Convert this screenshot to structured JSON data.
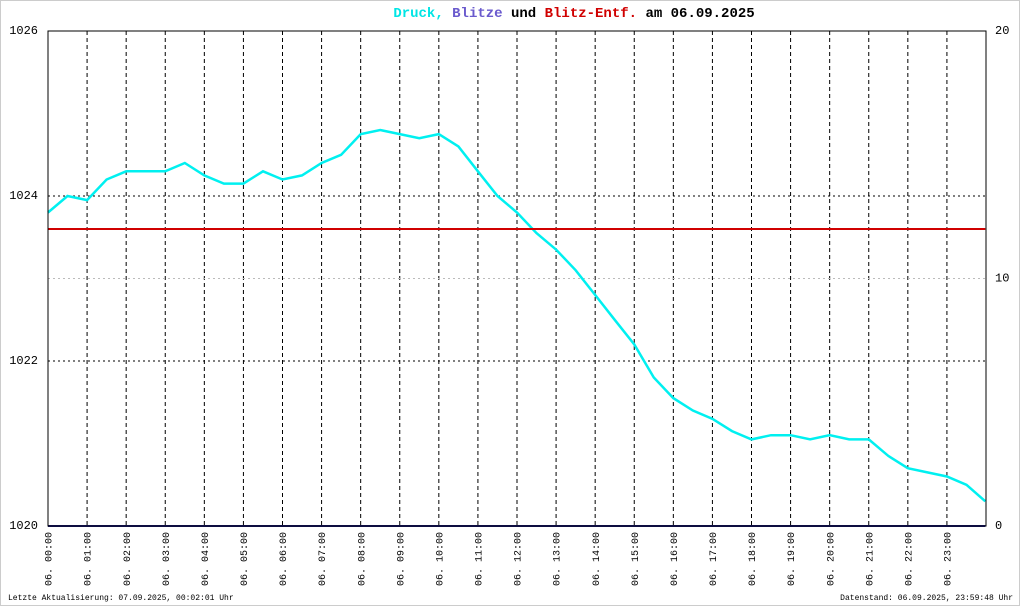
{
  "chart_data": {
    "type": "line",
    "title": [
      {
        "text": "Druck,",
        "color": "#00e5e5"
      },
      {
        "text": "Blitze",
        "color": "#6a5acd"
      },
      {
        "text": "und",
        "color": "#000000"
      },
      {
        "text": "Blitz-Entf.",
        "color": "#d00000"
      },
      {
        "text": "am 06.09.2025",
        "color": "#000000"
      }
    ],
    "footer_left": "Letzte Aktualisierung: 07.09.2025, 00:02:01 Uhr",
    "footer_right": "Datenstand: 06.09.2025, 23:59:48 Uhr",
    "xticks": [
      "06. 00:00",
      "06. 01:00",
      "06. 02:00",
      "06. 03:00",
      "06. 04:00",
      "06. 05:00",
      "06. 06:00",
      "06. 07:00",
      "06. 08:00",
      "06. 09:00",
      "06. 10:00",
      "06. 11:00",
      "06. 12:00",
      "06. 13:00",
      "06. 14:00",
      "06. 15:00",
      "06. 16:00",
      "06. 17:00",
      "06. 18:00",
      "06. 19:00",
      "06. 20:00",
      "06. 21:00",
      "06. 22:00",
      "06. 23:00"
    ],
    "ylim": [
      1020,
      1026
    ],
    "yticks": [
      1020,
      1022,
      1024,
      1026
    ],
    "y2lim": [
      0,
      20
    ],
    "y2ticks": [
      0,
      10,
      20
    ],
    "y2ticks_color": [
      "#000000",
      "#d00000",
      "#000000"
    ],
    "grid": true,
    "series": [
      {
        "name": "Druck",
        "color": "#00f0f0",
        "x": [
          "00:00",
          "00:30",
          "01:00",
          "01:30",
          "02:00",
          "02:30",
          "03:00",
          "03:30",
          "04:00",
          "04:30",
          "05:00",
          "05:30",
          "06:00",
          "06:30",
          "07:00",
          "07:30",
          "08:00",
          "08:30",
          "09:00",
          "09:30",
          "10:00",
          "10:30",
          "11:00",
          "11:30",
          "12:00",
          "12:30",
          "13:00",
          "13:30",
          "14:00",
          "14:30",
          "15:00",
          "15:30",
          "16:00",
          "16:30",
          "17:00",
          "17:30",
          "18:00",
          "18:30",
          "19:00",
          "19:30",
          "20:00",
          "20:30",
          "21:00",
          "21:30",
          "22:00",
          "22:30",
          "23:00",
          "23:30",
          "23:59"
        ],
        "values": [
          1023.8,
          1024.0,
          1023.95,
          1024.2,
          1024.3,
          1024.3,
          1024.3,
          1024.4,
          1024.25,
          1024.15,
          1024.15,
          1024.3,
          1024.2,
          1024.25,
          1024.4,
          1024.5,
          1024.75,
          1024.8,
          1024.75,
          1024.7,
          1024.75,
          1024.6,
          1024.3,
          1024.0,
          1023.8,
          1023.55,
          1023.35,
          1023.1,
          1022.8,
          1022.5,
          1022.2,
          1021.8,
          1021.55,
          1021.4,
          1021.3,
          1021.15,
          1021.05,
          1021.1,
          1021.1,
          1021.05,
          1021.1,
          1021.05,
          1021.05,
          1020.85,
          1020.7,
          1020.65,
          1020.6,
          1020.5,
          1020.3
        ]
      },
      {
        "name": "Blitze",
        "color": "#1a1a80",
        "axis": "y2",
        "x": [
          "00:00",
          "23:59"
        ],
        "values": [
          0,
          0
        ]
      },
      {
        "name": "Blitz-Entf.",
        "color": "#d00000",
        "axis": "y2",
        "x": [
          "00:00",
          "23:59"
        ],
        "values": [
          12,
          12
        ]
      }
    ]
  }
}
